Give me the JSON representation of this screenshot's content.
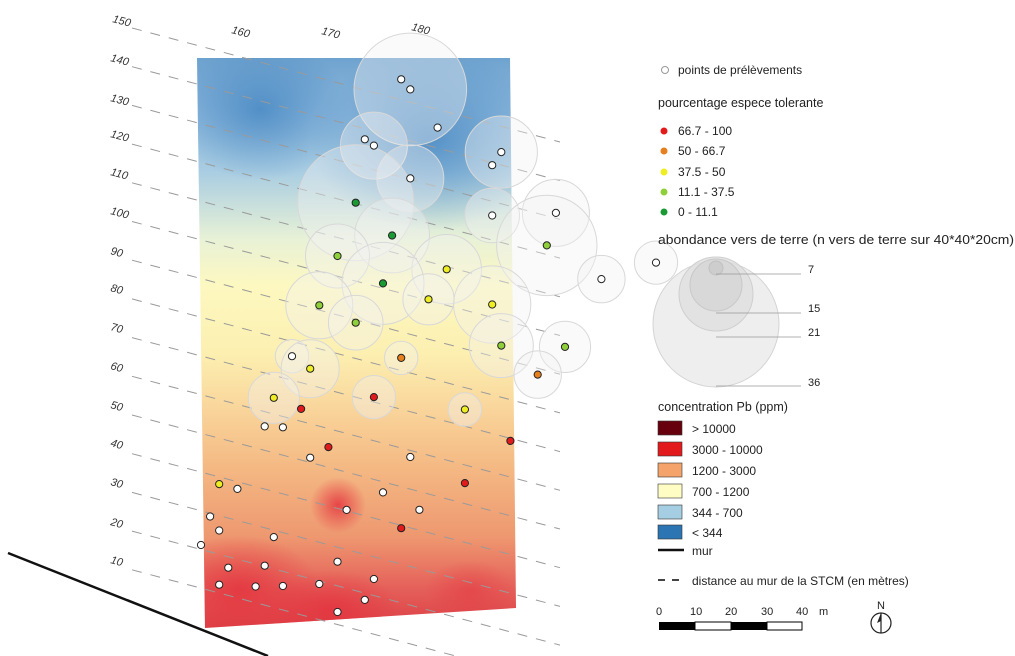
{
  "map": {
    "distance_lines": [
      "150",
      "140",
      "130",
      "120",
      "110",
      "100",
      "90",
      "80",
      "70",
      "60",
      "50",
      "40",
      "30",
      "20",
      "10"
    ],
    "top_ticks": [
      "160",
      "170",
      "180"
    ]
  },
  "legend": {
    "sampling_points": "points de prélèvements",
    "tolerant_title": "pourcentage espece tolerante",
    "tolerant_classes": [
      {
        "label": "66.7 - 100",
        "color": "#e31a1c"
      },
      {
        "label": "50 - 66.7",
        "color": "#e6801e"
      },
      {
        "label": "37.5 - 50",
        "color": "#eeee22"
      },
      {
        "label": "11.1 - 37.5",
        "color": "#8fcf3a"
      },
      {
        "label": "0 - 11.1",
        "color": "#1a9a33"
      }
    ],
    "earthworm_title": "abondance vers de terre (n vers de terre sur 40*40*20cm)",
    "earthworm_sizes": [
      {
        "label": "7",
        "value": 7
      },
      {
        "label": "15",
        "value": 15
      },
      {
        "label": "21",
        "value": 21
      },
      {
        "label": "36",
        "value": 36
      }
    ],
    "pb_title": "concentration Pb (ppm)",
    "pb_classes": [
      {
        "label": "> 10000",
        "color": "#67000d"
      },
      {
        "label": "3000 - 10000",
        "color": "#e31a1c"
      },
      {
        "label": "1200 - 3000",
        "color": "#f4a46a"
      },
      {
        "label": "700 - 1200",
        "color": "#fffcc4"
      },
      {
        "label": "344 - 700",
        "color": "#a6cee3"
      },
      {
        "label": "< 344",
        "color": "#2b75b2"
      }
    ],
    "wall": "mur",
    "distance_to_wall": "distance au mur de la STCM (en mètres)",
    "scale_ticks": [
      "0",
      "10",
      "20",
      "30",
      "40"
    ],
    "scale_unit": "m",
    "north": "N"
  },
  "points": [
    {
      "lat": 142,
      "lon": 167,
      "cls": null,
      "worms": 0
    },
    {
      "lat": 140,
      "lon": 168,
      "cls": null,
      "worms": 34
    },
    {
      "lat": 132,
      "lon": 171,
      "cls": null,
      "worms": 0
    },
    {
      "lat": 130,
      "lon": 178,
      "cls": null,
      "worms": 14
    },
    {
      "lat": 126,
      "lon": 177,
      "cls": null,
      "worms": 0
    },
    {
      "lat": 124,
      "lon": 163,
      "cls": null,
      "worms": 0
    },
    {
      "lat": 123,
      "lon": 164,
      "cls": null,
      "worms": 12
    },
    {
      "lat": 118,
      "lon": 184,
      "cls": null,
      "worms": 12
    },
    {
      "lat": 117,
      "lon": 168,
      "cls": null,
      "worms": 12
    },
    {
      "lat": 113,
      "lon": 177,
      "cls": null,
      "worms": 8
    },
    {
      "lat": 112,
      "lon": 195,
      "cls": null,
      "worms": 5
    },
    {
      "lat": 109,
      "lon": 183,
      "cls": 3,
      "worms": 27
    },
    {
      "lat": 107,
      "lon": 162,
      "cls": 4,
      "worms": 36
    },
    {
      "lat": 104,
      "lon": 189,
      "cls": null,
      "worms": 6
    },
    {
      "lat": 101,
      "lon": 166,
      "cls": 4,
      "worms": 15
    },
    {
      "lat": 96,
      "lon": 172,
      "cls": 2,
      "worms": 13
    },
    {
      "lat": 92,
      "lon": 160,
      "cls": 3,
      "worms": 11
    },
    {
      "lat": 90,
      "lon": 177,
      "cls": 2,
      "worms": 16
    },
    {
      "lat": 88,
      "lon": 165,
      "cls": 4,
      "worms": 18
    },
    {
      "lat": 87,
      "lon": 170,
      "cls": 2,
      "worms": 7
    },
    {
      "lat": 84,
      "lon": 185,
      "cls": 3,
      "worms": 7
    },
    {
      "lat": 80,
      "lon": 178,
      "cls": 3,
      "worms": 11
    },
    {
      "lat": 78,
      "lon": 158,
      "cls": 3,
      "worms": 12
    },
    {
      "lat": 76,
      "lon": 162,
      "cls": 3,
      "worms": 8
    },
    {
      "lat": 75,
      "lon": 182,
      "cls": 1,
      "worms": 6
    },
    {
      "lat": 70,
      "lon": 167,
      "cls": 1,
      "worms": 3
    },
    {
      "lat": 63,
      "lon": 155,
      "cls": null,
      "worms": 3
    },
    {
      "lat": 61,
      "lon": 157,
      "cls": 2,
      "worms": 9
    },
    {
      "lat": 61,
      "lon": 174,
      "cls": 2,
      "worms": 3
    },
    {
      "lat": 58,
      "lon": 164,
      "cls": 0,
      "worms": 5
    },
    {
      "lat": 56,
      "lon": 179,
      "cls": 0,
      "worms": 0
    },
    {
      "lat": 51,
      "lon": 153,
      "cls": 2,
      "worms": 7
    },
    {
      "lat": 50,
      "lon": 156,
      "cls": 0,
      "worms": 0
    },
    {
      "lat": 45,
      "lon": 168,
      "cls": null,
      "worms": 0
    },
    {
      "lat": 44,
      "lon": 154,
      "cls": null,
      "worms": 0
    },
    {
      "lat": 43,
      "lon": 152,
      "cls": null,
      "worms": 0
    },
    {
      "lat": 42,
      "lon": 159,
      "cls": 0,
      "worms": 0
    },
    {
      "lat": 42,
      "lon": 174,
      "cls": 0,
      "worms": 0
    },
    {
      "lat": 38,
      "lon": 157,
      "cls": null,
      "worms": 0
    },
    {
      "lat": 34,
      "lon": 165,
      "cls": null,
      "worms": 0
    },
    {
      "lat": 32,
      "lon": 169,
      "cls": null,
      "worms": 0
    },
    {
      "lat": 27,
      "lon": 161,
      "cls": null,
      "worms": 0
    },
    {
      "lat": 26,
      "lon": 167,
      "cls": 0,
      "worms": 0
    },
    {
      "lat": 25,
      "lon": 147,
      "cls": 2,
      "worms": 0
    },
    {
      "lat": 25,
      "lon": 149,
      "cls": null,
      "worms": 0
    },
    {
      "lat": 16,
      "lon": 146,
      "cls": null,
      "worms": 0
    },
    {
      "lat": 15,
      "lon": 153,
      "cls": null,
      "worms": 0
    },
    {
      "lat": 13,
      "lon": 147,
      "cls": null,
      "worms": 0
    },
    {
      "lat": 13,
      "lon": 160,
      "cls": null,
      "worms": 0
    },
    {
      "lat": 11,
      "lon": 164,
      "cls": null,
      "worms": 0
    },
    {
      "lat": 8,
      "lon": 145,
      "cls": null,
      "worms": 0
    },
    {
      "lat": 7,
      "lon": 152,
      "cls": null,
      "worms": 0
    },
    {
      "lat": 6,
      "lon": 158,
      "cls": null,
      "worms": 0
    },
    {
      "lat": 5,
      "lon": 163,
      "cls": null,
      "worms": 0
    },
    {
      "lat": 4,
      "lon": 148,
      "cls": null,
      "worms": 0
    },
    {
      "lat": 3,
      "lon": 154,
      "cls": null,
      "worms": 0
    },
    {
      "lat": 1,
      "lon": 151,
      "cls": null,
      "worms": 0
    },
    {
      "lat": 0,
      "lon": 160,
      "cls": null,
      "worms": 0
    },
    {
      "lat": -1,
      "lon": 147,
      "cls": null,
      "worms": 0
    }
  ]
}
